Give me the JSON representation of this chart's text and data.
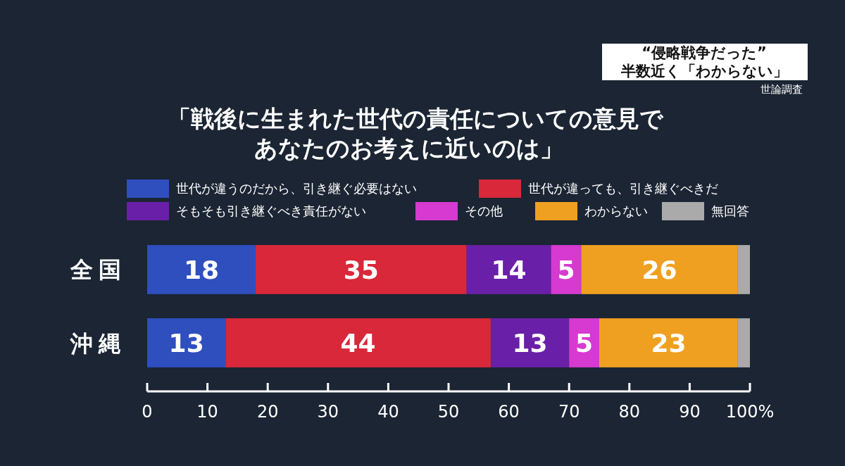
{
  "chart_data": {
    "type": "bar",
    "orientation": "horizontal",
    "stacked": true,
    "title": "「戦後に生まれた世代の責任についての意見であなたのお考えに近いのは」",
    "annotations": [
      "“侵略戦争だった”",
      "半数近く「わからない」",
      "世論調査"
    ],
    "categories": [
      "全国",
      "沖縄"
    ],
    "series": [
      {
        "name": "世代が違うのだから、引き継ぐ必要はない",
        "color": "#2f4fbf",
        "values": [
          18,
          13
        ],
        "value_labels": [
          "18",
          "13"
        ]
      },
      {
        "name": "世代が違っても、引き継ぐべきだ",
        "color": "#d9283a",
        "values": [
          35,
          44
        ],
        "value_labels": [
          "35",
          "44"
        ]
      },
      {
        "name": "そもそも引き継ぐべき責任がない",
        "color": "#6a1fa8",
        "values": [
          14,
          13
        ],
        "value_labels": [
          "14",
          "13"
        ]
      },
      {
        "name": "その他",
        "color": "#d63ad0",
        "values": [
          5,
          5
        ],
        "value_labels": [
          "5",
          "5"
        ]
      },
      {
        "name": "わからない",
        "color": "#f0a020",
        "values": [
          26,
          23
        ],
        "value_labels": [
          "26",
          "23"
        ]
      },
      {
        "name": "無回答",
        "color": "#aaaaaa",
        "values": [
          2,
          2
        ],
        "value_labels": [
          null,
          null
        ]
      }
    ],
    "xlim": [
      0,
      100
    ],
    "xticks": [
      0,
      10,
      20,
      30,
      40,
      50,
      60,
      70,
      80,
      90,
      {
        "value": 100,
        "label": "100%"
      }
    ],
    "grid": false,
    "legend": "top"
  }
}
